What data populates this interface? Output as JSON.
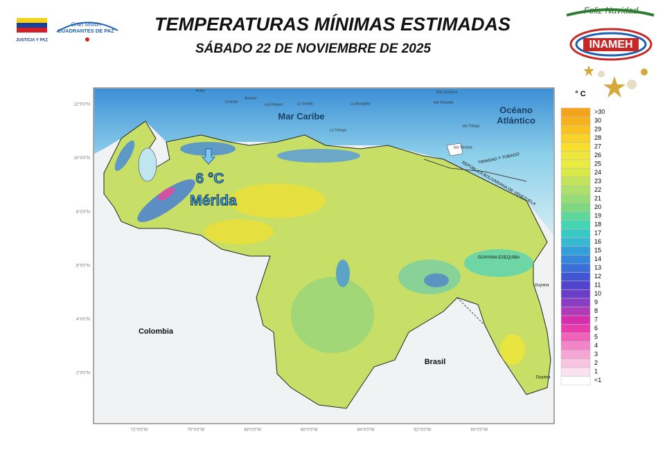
{
  "header": {
    "title": "TEMPERATURAS MÍNIMAS ESTIMADAS",
    "subtitle": "SÁBADO 22  DE NOVIEMBRE  DE 2025"
  },
  "logos": {
    "left_caption": "JUSTICIA Y PAZ",
    "mission_top": "Gran Misión",
    "mission_bottom": "CUADRANTES DE PAZ",
    "greeting": "Feliz Navidad",
    "institute": "INAMEH"
  },
  "map": {
    "sea_north": "Mar Caribe",
    "ocean_line1": "Océano",
    "ocean_line2": "Atlántico",
    "country_west": "Colombia",
    "country_south": "Brasil",
    "guyana_north": "Guyana",
    "guyana_south": "Guyana",
    "esequibo": "GUAYANA ESEQUIBA",
    "trinidad_border": "TRINIDAD Y TOBAGO",
    "venezuela_border": "REPÚBLICA BOLIVARIANA DE VENEZUELA",
    "min_value": "6 °C",
    "min_place": "Mérida",
    "islands": [
      "Aruba",
      "Curazao",
      "Bonaire",
      "Los Roques",
      "La Orchila",
      "La Blanquilla",
      "La Tortuga",
      "Isla Carriacou",
      "Isla Granada",
      "Isla Tobago",
      "Isla Trinidad"
    ],
    "lat_labels": [
      "12°0'0\"N",
      "10°0'0\"N",
      "8°0'0\"N",
      "6°0'0\"N",
      "4°0'0\"N",
      "2°0'0\"N"
    ],
    "lon_labels": [
      "72°0'0\"W",
      "70°0'0\"W",
      "68°0'0\"W",
      "66°0'0\"W",
      "64°0'0\"W",
      "62°0'0\"W",
      "60°0'0\"W"
    ]
  },
  "legend": {
    "unit": "° C",
    "items": [
      {
        "label": ">30",
        "color": "#f4a31c"
      },
      {
        "label": "30",
        "color": "#f7b21b"
      },
      {
        "label": "29",
        "color": "#f9c21e"
      },
      {
        "label": "28",
        "color": "#f9d22a"
      },
      {
        "label": "27",
        "color": "#f7df2b"
      },
      {
        "label": "26",
        "color": "#eee63a"
      },
      {
        "label": "25",
        "color": "#e9ec3e"
      },
      {
        "label": "24",
        "color": "#d8e94a"
      },
      {
        "label": "23",
        "color": "#c2e45a"
      },
      {
        "label": "22",
        "color": "#aee06a"
      },
      {
        "label": "21",
        "color": "#97dc74"
      },
      {
        "label": "20",
        "color": "#7fd87f"
      },
      {
        "label": "19",
        "color": "#5fd79a"
      },
      {
        "label": "18",
        "color": "#42d5b2"
      },
      {
        "label": "17",
        "color": "#39c9c5"
      },
      {
        "label": "16",
        "color": "#37b8d3"
      },
      {
        "label": "15",
        "color": "#339fd8"
      },
      {
        "label": "14",
        "color": "#3487db"
      },
      {
        "label": "13",
        "color": "#3a6fd9"
      },
      {
        "label": "12",
        "color": "#4256d3"
      },
      {
        "label": "11",
        "color": "#5244cd"
      },
      {
        "label": "10",
        "color": "#6a3ec8"
      },
      {
        "label": "9",
        "color": "#8a3cc2"
      },
      {
        "label": "8",
        "color": "#b13ab8"
      },
      {
        "label": "7",
        "color": "#d42fad"
      },
      {
        "label": "6",
        "color": "#e83cae"
      },
      {
        "label": "5",
        "color": "#ee62b9"
      },
      {
        "label": "4",
        "color": "#f285c7"
      },
      {
        "label": "3",
        "color": "#f5a6d5"
      },
      {
        "label": "2",
        "color": "#f8c4e2"
      },
      {
        "label": "1",
        "color": "#fbe0ef"
      },
      {
        "label": "<1",
        "color": "#ffffff"
      }
    ]
  }
}
